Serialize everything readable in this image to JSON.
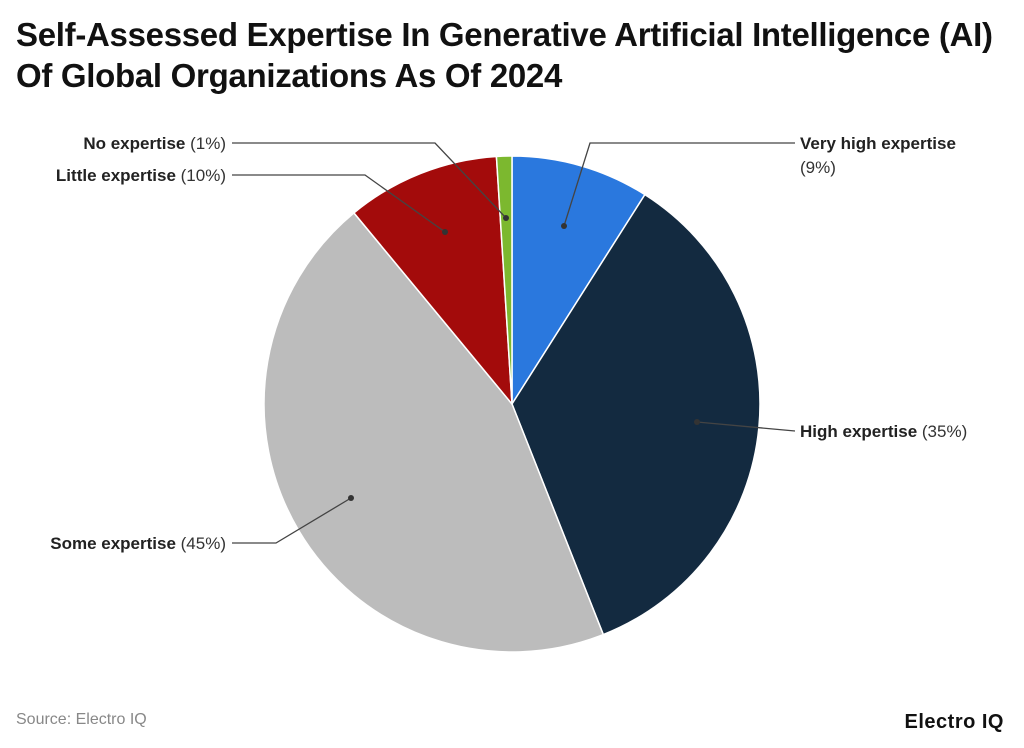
{
  "title": "Self-Assessed Expertise In Generative Artificial Intelligence (AI) Of Global Organizations As Of 2024",
  "source": "Source: Electro IQ",
  "logo": "Electro IQ",
  "chart_data": {
    "type": "pie",
    "title": "Self-Assessed Expertise In Generative Artificial Intelligence (AI) Of Global Organizations As Of 2024",
    "start": "top",
    "direction": "clockwise",
    "slices": [
      {
        "label": "Very high expertise",
        "value": 9,
        "value_label": "(9%)",
        "color": "#2a78de"
      },
      {
        "label": "High expertise",
        "value": 35,
        "value_label": "(35%)",
        "color": "#132a40"
      },
      {
        "label": "Some expertise",
        "value": 45,
        "value_label": "(45%)",
        "color": "#bcbcbc"
      },
      {
        "label": "Little expertise",
        "value": 10,
        "value_label": "(10%)",
        "color": "#a30b0b"
      },
      {
        "label": "No expertise",
        "value": 1,
        "value_label": "(1%)",
        "color": "#7cb82f"
      }
    ]
  }
}
